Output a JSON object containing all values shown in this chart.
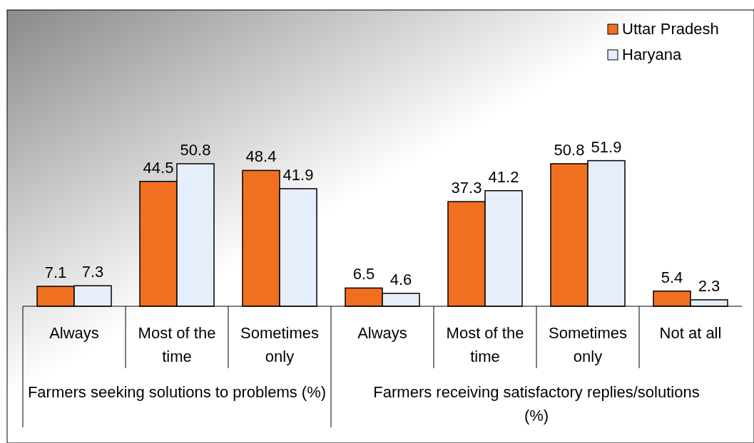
{
  "chart_data": {
    "type": "bar",
    "categories": [
      "Always",
      "Most of the time",
      "Sometimes only",
      "Always",
      "Most of the time",
      "Sometimes only",
      "Not at all"
    ],
    "series": [
      {
        "name": "Uttar Pradesh",
        "color": "#f07020",
        "values": [
          7.1,
          44.5,
          48.4,
          6.5,
          37.3,
          50.8,
          5.4
        ]
      },
      {
        "name": "Haryana",
        "color": "#e6eefb",
        "values": [
          7.3,
          50.8,
          41.9,
          4.6,
          41.2,
          51.9,
          2.3
        ]
      }
    ],
    "annotations": [
      "Farmers seeking solutions to problems (%)",
      "Farmers receiving satisfactory replies/solutions (%)"
    ],
    "data_labels": true,
    "legend": "top right"
  }
}
